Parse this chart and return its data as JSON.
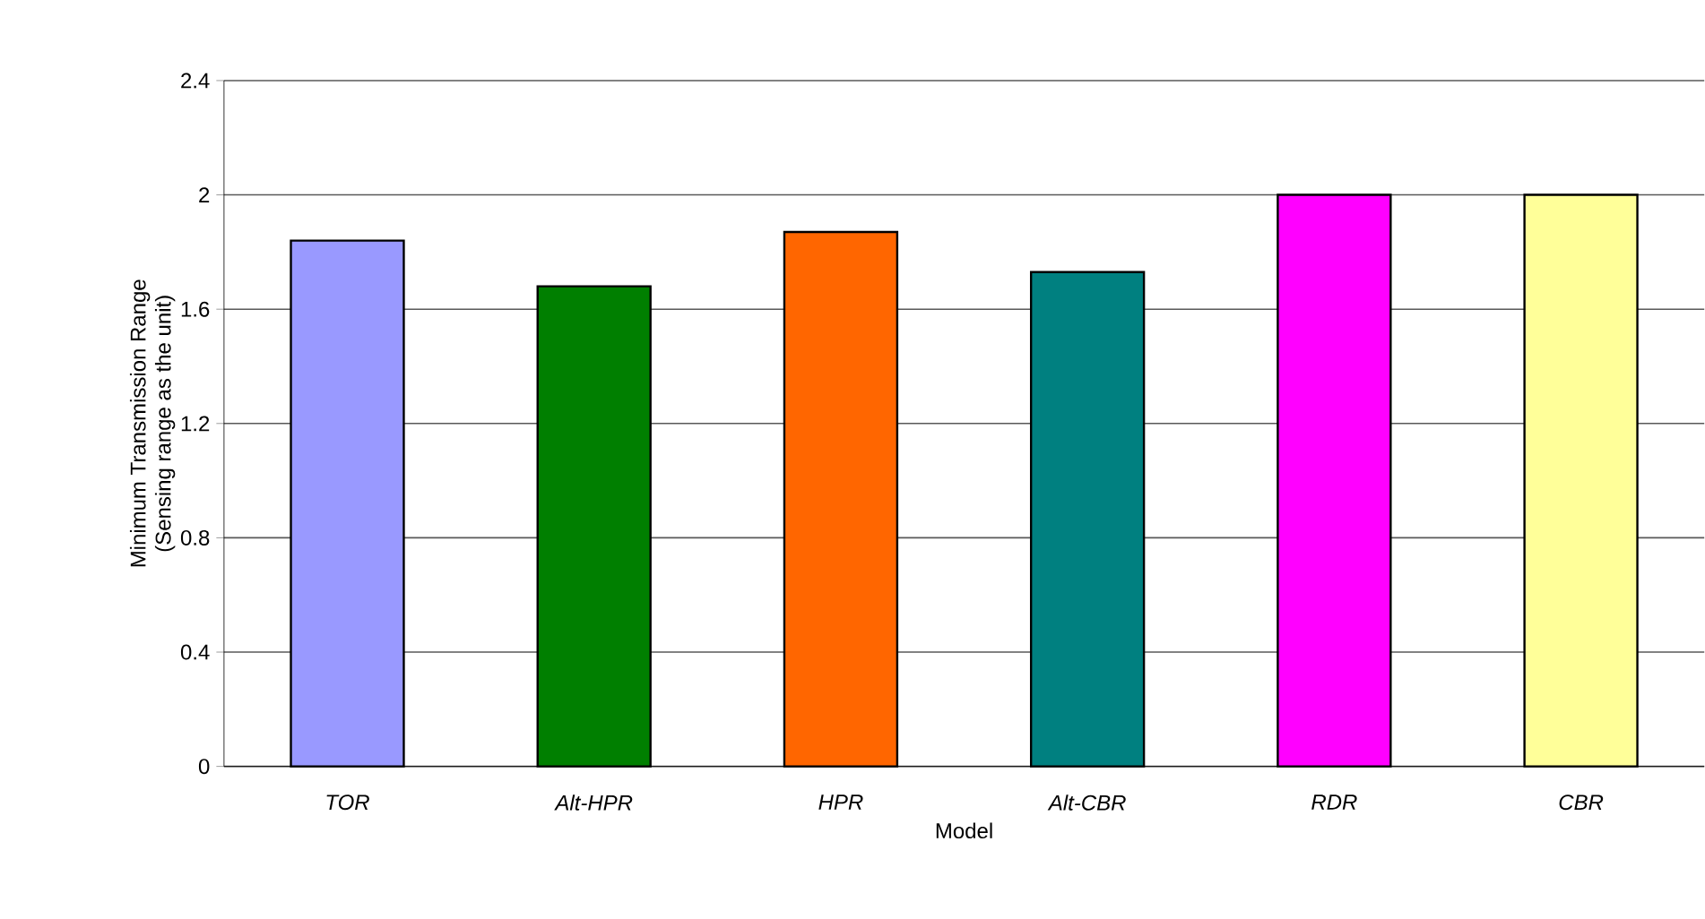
{
  "chart_data": {
    "type": "bar",
    "xlabel": "Model",
    "ylabel": "Minimum Transmission Range\n(Sensing range as the unit)",
    "categories": [
      "TOR",
      "Alt-HPR",
      "HPR",
      "Alt-CBR",
      "RDR",
      "CBR"
    ],
    "values": [
      1.84,
      1.68,
      1.87,
      1.73,
      2.0,
      2.0
    ],
    "colors": [
      "#9999ff",
      "#007f00",
      "#ff6600",
      "#008080",
      "#ff00ff",
      "#ffff99"
    ],
    "ylim": [
      0,
      2.4
    ],
    "yticks": [
      0,
      0.4,
      0.8,
      1.2,
      1.6,
      2,
      2.4
    ],
    "grid": "y"
  }
}
